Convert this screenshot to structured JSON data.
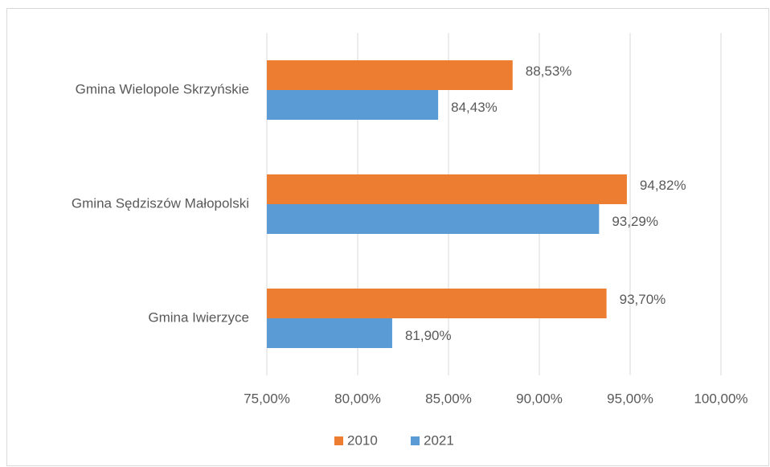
{
  "chart_data": {
    "type": "hbar",
    "categories": [
      "Gmina Wielopole Skrzyńskie",
      "Gmina Sędziszów Małopolski",
      "Gmina Iwierzyce"
    ],
    "series": [
      {
        "name": "2010",
        "color": "#ed7d31",
        "values": [
          88.53,
          94.82,
          93.7
        ],
        "value_labels": [
          "88,53%",
          "94,82%",
          "93,70%"
        ]
      },
      {
        "name": "2021",
        "color": "#5b9bd5",
        "values": [
          84.43,
          93.29,
          81.9
        ],
        "value_labels": [
          "84,43%",
          "93,29%",
          "81,90%"
        ]
      }
    ],
    "xlim": [
      75,
      100
    ],
    "xticks": [
      {
        "value": 75,
        "label": "75,00%"
      },
      {
        "value": 80,
        "label": "80,00%"
      },
      {
        "value": 85,
        "label": "85,00%"
      },
      {
        "value": 90,
        "label": "90,00%"
      },
      {
        "value": 95,
        "label": "95,00%"
      },
      {
        "value": 100,
        "label": "100,00%"
      }
    ],
    "grid": true,
    "legend": "bottom"
  }
}
